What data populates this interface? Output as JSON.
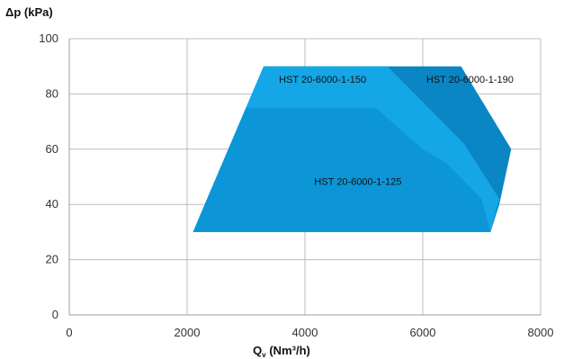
{
  "chart_data": {
    "type": "area",
    "ylabel": "Δp (kPa)",
    "xlabel_main": "Q",
    "xlabel_sub": "v",
    "xlabel_rest": " (Nm³/h)",
    "xlim": [
      0,
      8000
    ],
    "ylim": [
      0,
      100
    ],
    "x_ticks": [
      "0",
      "2000",
      "4000",
      "6000",
      "8000"
    ],
    "y_ticks": [
      "0",
      "20",
      "40",
      "60",
      "80",
      "100"
    ],
    "grid": true,
    "series": [
      {
        "name": "HST 20-6000-1-190",
        "color": "#0a86c4",
        "points": [
          [
            2100,
            30
          ],
          [
            2300,
            40
          ],
          [
            3300,
            90
          ],
          [
            6650,
            90
          ],
          [
            7500,
            60
          ],
          [
            7300,
            40
          ],
          [
            7150,
            30
          ]
        ]
      },
      {
        "name": "HST 20-6000-1-150",
        "color": "#14a6e6",
        "points": [
          [
            2100,
            30
          ],
          [
            2300,
            40
          ],
          [
            3300,
            90
          ],
          [
            5400,
            90
          ],
          [
            6700,
            62
          ],
          [
            7300,
            42
          ],
          [
            7150,
            30
          ]
        ]
      },
      {
        "name": "HST 20-6000-1-125",
        "color": "#0c96d8",
        "points": [
          [
            2100,
            30
          ],
          [
            2300,
            40
          ],
          [
            3000,
            75
          ],
          [
            5200,
            75
          ],
          [
            6000,
            60
          ],
          [
            6400,
            55
          ],
          [
            7000,
            42
          ],
          [
            7150,
            30
          ]
        ]
      }
    ],
    "labels": [
      {
        "text": "HST 20-6000-1-150",
        "x": 4300,
        "y": 84
      },
      {
        "text": "HST 20-6000-1-190",
        "x": 6800,
        "y": 84
      },
      {
        "text": "HST 20-6000-1-125",
        "x": 4900,
        "y": 47
      }
    ]
  }
}
